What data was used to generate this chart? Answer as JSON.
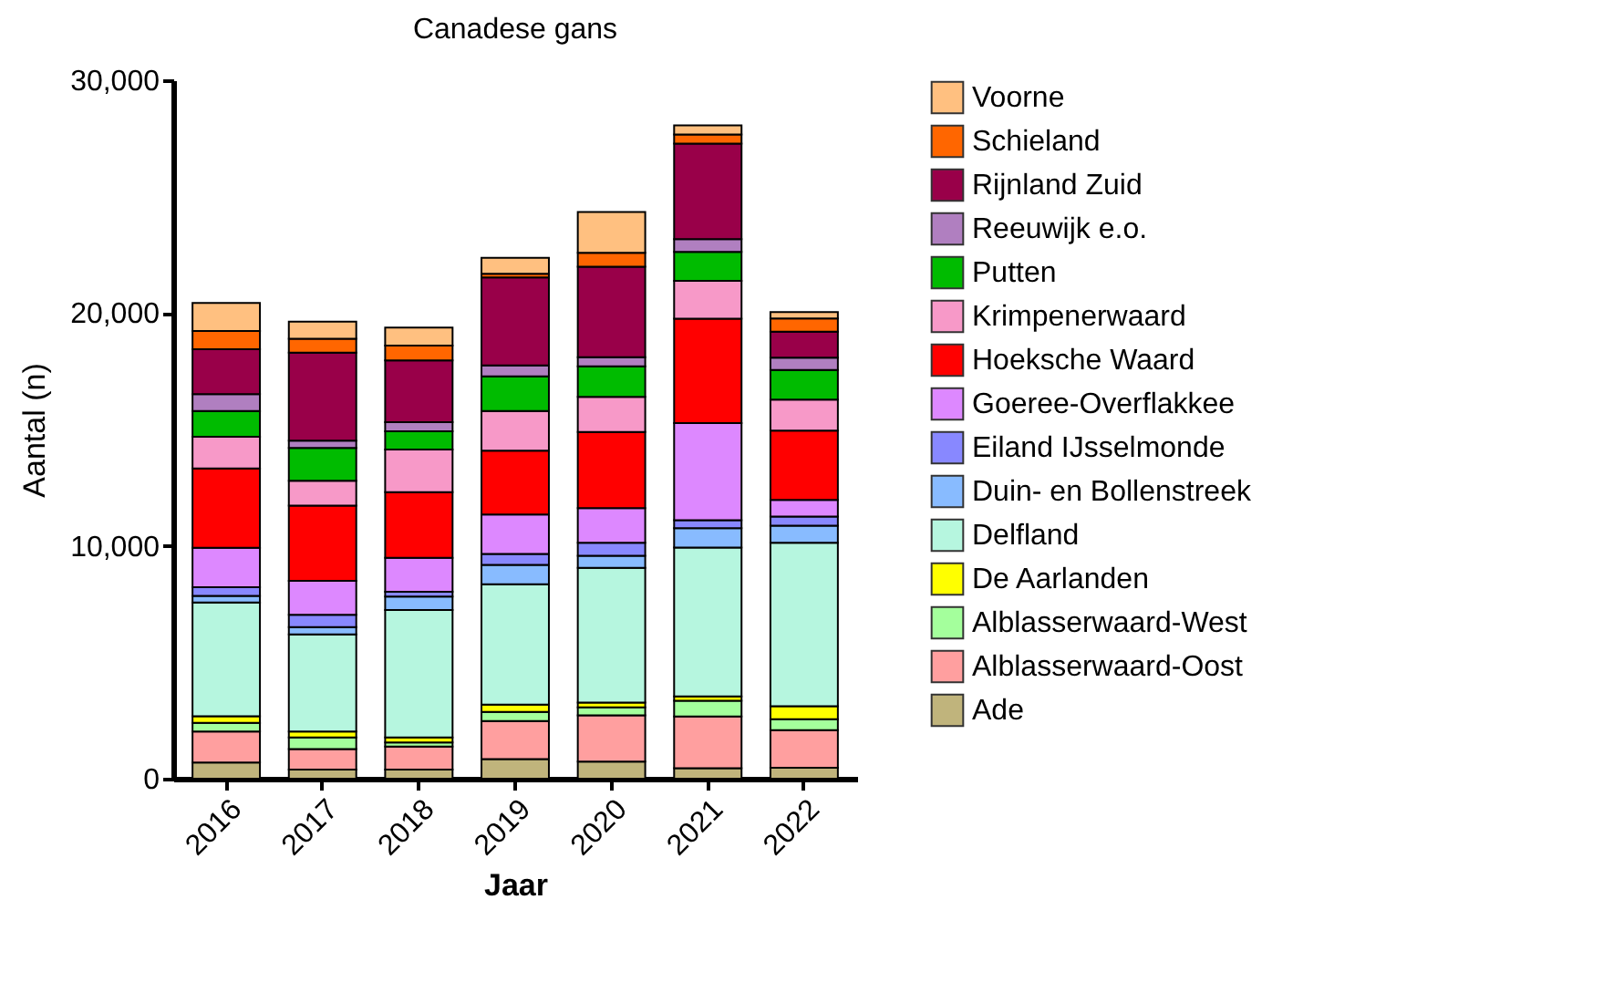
{
  "chart_data": {
    "type": "bar",
    "stacked": true,
    "title": "Canadese gans",
    "xlabel": "Jaar",
    "ylabel": "Aantal (n)",
    "categories": [
      "2016",
      "2017",
      "2018",
      "2019",
      "2020",
      "2021",
      "2022"
    ],
    "ylim": [
      0,
      30000
    ],
    "yticks": [
      {
        "value": 0,
        "label": "0"
      },
      {
        "value": 10000,
        "label": "10,000"
      },
      {
        "value": 20000,
        "label": "20,000"
      },
      {
        "value": 30000,
        "label": "30,000"
      }
    ],
    "grid": false,
    "legend": "right",
    "series": [
      {
        "name": "Ade",
        "color": "#c0b47c",
        "values": [
          700,
          390,
          390,
          840,
          730,
          450,
          470
        ]
      },
      {
        "name": "Alblasserwaard-Oost",
        "color": "#ff9f9f",
        "values": [
          1330,
          880,
          990,
          1640,
          1990,
          2220,
          1620
        ]
      },
      {
        "name": "Alblasserwaard-West",
        "color": "#a4ff9c",
        "values": [
          370,
          500,
          180,
          390,
          340,
          680,
          470
        ]
      },
      {
        "name": "De Aarlanden",
        "color": "#ffff00",
        "values": [
          280,
          260,
          210,
          310,
          210,
          180,
          550
        ]
      },
      {
        "name": "Delfland",
        "color": "#b6f6df",
        "values": [
          4890,
          4170,
          5480,
          5170,
          5790,
          6400,
          7020
        ]
      },
      {
        "name": "Duin- en Bollenstreek",
        "color": "#88bbff",
        "values": [
          280,
          310,
          570,
          830,
          520,
          830,
          740
        ]
      },
      {
        "name": "Eiland IJsselmonde",
        "color": "#8888ff",
        "values": [
          370,
          530,
          210,
          470,
          550,
          340,
          390
        ]
      },
      {
        "name": "Goeree-Overflakkee",
        "color": "#dd88ff",
        "values": [
          1700,
          1460,
          1460,
          1700,
          1490,
          4170,
          710
        ]
      },
      {
        "name": "Hoeksche Waard",
        "color": "#ff0000",
        "values": [
          3410,
          3230,
          2820,
          2740,
          3270,
          4490,
          2980
        ]
      },
      {
        "name": "Krimpenerwaard",
        "color": "#f799c8",
        "values": [
          1360,
          1070,
          1830,
          1700,
          1510,
          1620,
          1330
        ]
      },
      {
        "name": "Putten",
        "color": "#00bb00",
        "values": [
          1100,
          1410,
          780,
          1490,
          1310,
          1250,
          1280
        ]
      },
      {
        "name": "Reeuwijk e.o.",
        "color": "#b07fc0",
        "values": [
          730,
          310,
          390,
          470,
          390,
          550,
          520
        ]
      },
      {
        "name": "Rijnland Zuid",
        "color": "#990049",
        "values": [
          1930,
          3780,
          2660,
          3780,
          3890,
          4100,
          1120
        ]
      },
      {
        "name": "Schieland",
        "color": "#ff6600",
        "values": [
          780,
          600,
          630,
          160,
          600,
          390,
          570
        ]
      },
      {
        "name": "Voorne",
        "color": "#ffc080",
        "values": [
          1200,
          730,
          780,
          680,
          1750,
          390,
          270
        ]
      }
    ]
  }
}
